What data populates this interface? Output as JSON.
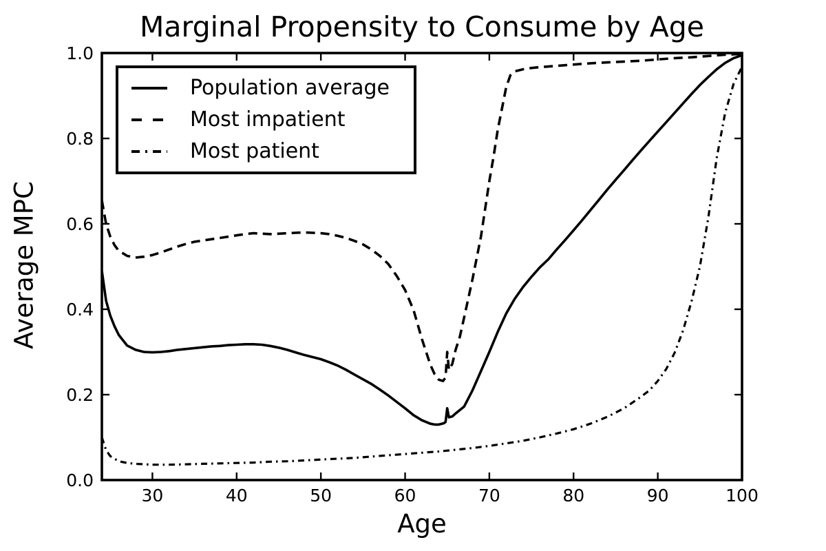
{
  "chart_data": {
    "type": "line",
    "title": "Marginal Propensity to Consume by Age",
    "xlabel": "Age",
    "ylabel": "Average MPC",
    "xlim": [
      24,
      100
    ],
    "ylim": [
      0.0,
      1.0
    ],
    "grid": false,
    "legend_position": "upper left",
    "line_color": "#000000",
    "background_color": "#ffffff",
    "xticks": [
      {
        "label": "30",
        "value": 30
      },
      {
        "label": "40",
        "value": 40
      },
      {
        "label": "50",
        "value": 50
      },
      {
        "label": "60",
        "value": 60
      },
      {
        "label": "70",
        "value": 70
      },
      {
        "label": "80",
        "value": 80
      },
      {
        "label": "90",
        "value": 90
      },
      {
        "label": "100",
        "value": 100
      }
    ],
    "yticks": [
      {
        "label": "0.0",
        "value": 0.0
      },
      {
        "label": "0.2",
        "value": 0.2
      },
      {
        "label": "0.4",
        "value": 0.4
      },
      {
        "label": "0.6",
        "value": 0.6
      },
      {
        "label": "0.8",
        "value": 0.8
      },
      {
        "label": "1.0",
        "value": 1.0
      }
    ],
    "series": [
      {
        "name": "Population average",
        "style": "solid",
        "points": [
          [
            24,
            0.49
          ],
          [
            24.5,
            0.42
          ],
          [
            25,
            0.385
          ],
          [
            25.5,
            0.36
          ],
          [
            26,
            0.34
          ],
          [
            27,
            0.315
          ],
          [
            28,
            0.305
          ],
          [
            29,
            0.3
          ],
          [
            30,
            0.299
          ],
          [
            31,
            0.3
          ],
          [
            32,
            0.302
          ],
          [
            33,
            0.305
          ],
          [
            34,
            0.307
          ],
          [
            35,
            0.309
          ],
          [
            36,
            0.311
          ],
          [
            37,
            0.313
          ],
          [
            38,
            0.314
          ],
          [
            39,
            0.316
          ],
          [
            40,
            0.317
          ],
          [
            41,
            0.318
          ],
          [
            42,
            0.318
          ],
          [
            43,
            0.317
          ],
          [
            44,
            0.314
          ],
          [
            45,
            0.31
          ],
          [
            46,
            0.305
          ],
          [
            47,
            0.299
          ],
          [
            48,
            0.293
          ],
          [
            49,
            0.288
          ],
          [
            50,
            0.283
          ],
          [
            51,
            0.276
          ],
          [
            52,
            0.268
          ],
          [
            53,
            0.258
          ],
          [
            54,
            0.247
          ],
          [
            55,
            0.236
          ],
          [
            56,
            0.225
          ],
          [
            57,
            0.212
          ],
          [
            58,
            0.198
          ],
          [
            59,
            0.183
          ],
          [
            60,
            0.168
          ],
          [
            61,
            0.152
          ],
          [
            62,
            0.14
          ],
          [
            63,
            0.132
          ],
          [
            63.5,
            0.13
          ],
          [
            64,
            0.13
          ],
          [
            64.6,
            0.133
          ],
          [
            64.8,
            0.136
          ],
          [
            65,
            0.168
          ],
          [
            65.2,
            0.147
          ],
          [
            65.6,
            0.149
          ],
          [
            66,
            0.156
          ],
          [
            67,
            0.172
          ],
          [
            68,
            0.21
          ],
          [
            69,
            0.255
          ],
          [
            70,
            0.3
          ],
          [
            71,
            0.347
          ],
          [
            72,
            0.39
          ],
          [
            73,
            0.424
          ],
          [
            74,
            0.452
          ],
          [
            75,
            0.476
          ],
          [
            76,
            0.498
          ],
          [
            77,
            0.517
          ],
          [
            78,
            0.54
          ],
          [
            79,
            0.562
          ],
          [
            80,
            0.585
          ],
          [
            81,
            0.608
          ],
          [
            82,
            0.632
          ],
          [
            83,
            0.656
          ],
          [
            84,
            0.68
          ],
          [
            85,
            0.703
          ],
          [
            86,
            0.726
          ],
          [
            87,
            0.749
          ],
          [
            88,
            0.772
          ],
          [
            89,
            0.794
          ],
          [
            90,
            0.816
          ],
          [
            91,
            0.838
          ],
          [
            92,
            0.86
          ],
          [
            93,
            0.882
          ],
          [
            94,
            0.904
          ],
          [
            95,
            0.925
          ],
          [
            96,
            0.944
          ],
          [
            97,
            0.962
          ],
          [
            98,
            0.977
          ],
          [
            99,
            0.988
          ],
          [
            100,
            0.995
          ]
        ]
      },
      {
        "name": "Most impatient",
        "style": "dashed",
        "points": [
          [
            24,
            0.655
          ],
          [
            24.5,
            0.6
          ],
          [
            25,
            0.57
          ],
          [
            25.5,
            0.55
          ],
          [
            26,
            0.537
          ],
          [
            27,
            0.525
          ],
          [
            28,
            0.521
          ],
          [
            29,
            0.523
          ],
          [
            30,
            0.527
          ],
          [
            31,
            0.533
          ],
          [
            32,
            0.54
          ],
          [
            33,
            0.547
          ],
          [
            34,
            0.553
          ],
          [
            35,
            0.558
          ],
          [
            36,
            0.561
          ],
          [
            37,
            0.564
          ],
          [
            38,
            0.567
          ],
          [
            39,
            0.57
          ],
          [
            40,
            0.573
          ],
          [
            41,
            0.576
          ],
          [
            42,
            0.578
          ],
          [
            43,
            0.577
          ],
          [
            44,
            0.576
          ],
          [
            45,
            0.577
          ],
          [
            46,
            0.578
          ],
          [
            47,
            0.579
          ],
          [
            48,
            0.58
          ],
          [
            49,
            0.579
          ],
          [
            50,
            0.578
          ],
          [
            51,
            0.576
          ],
          [
            52,
            0.572
          ],
          [
            53,
            0.567
          ],
          [
            54,
            0.56
          ],
          [
            55,
            0.552
          ],
          [
            56,
            0.54
          ],
          [
            57,
            0.525
          ],
          [
            58,
            0.506
          ],
          [
            59,
            0.478
          ],
          [
            60,
            0.445
          ],
          [
            61,
            0.398
          ],
          [
            62,
            0.33
          ],
          [
            63,
            0.27
          ],
          [
            63.5,
            0.248
          ],
          [
            64,
            0.235
          ],
          [
            64.5,
            0.232
          ],
          [
            64.8,
            0.24
          ],
          [
            65,
            0.3
          ],
          [
            65.2,
            0.258
          ],
          [
            65.6,
            0.272
          ],
          [
            66,
            0.305
          ],
          [
            66.5,
            0.336
          ],
          [
            67,
            0.38
          ],
          [
            68,
            0.47
          ],
          [
            69,
            0.57
          ],
          [
            70,
            0.7
          ],
          [
            70.5,
            0.757
          ],
          [
            71,
            0.82
          ],
          [
            72,
            0.92
          ],
          [
            72.5,
            0.948
          ],
          [
            73,
            0.957
          ],
          [
            74,
            0.962
          ],
          [
            75,
            0.965
          ],
          [
            76,
            0.967
          ],
          [
            78,
            0.97
          ],
          [
            80,
            0.973
          ],
          [
            82,
            0.976
          ],
          [
            84,
            0.978
          ],
          [
            86,
            0.98
          ],
          [
            88,
            0.982
          ],
          [
            90,
            0.985
          ],
          [
            92,
            0.988
          ],
          [
            94,
            0.99
          ],
          [
            96,
            0.993
          ],
          [
            98,
            0.996
          ],
          [
            100,
            0.998
          ]
        ]
      },
      {
        "name": "Most patient",
        "style": "dashdot",
        "points": [
          [
            24,
            0.1
          ],
          [
            24.5,
            0.07
          ],
          [
            25,
            0.056
          ],
          [
            26,
            0.044
          ],
          [
            27,
            0.04
          ],
          [
            28,
            0.038
          ],
          [
            30,
            0.036
          ],
          [
            32,
            0.036
          ],
          [
            34,
            0.037
          ],
          [
            36,
            0.038
          ],
          [
            38,
            0.039
          ],
          [
            40,
            0.04
          ],
          [
            42,
            0.041
          ],
          [
            44,
            0.043
          ],
          [
            46,
            0.044
          ],
          [
            48,
            0.046
          ],
          [
            50,
            0.048
          ],
          [
            52,
            0.05
          ],
          [
            54,
            0.052
          ],
          [
            56,
            0.055
          ],
          [
            58,
            0.058
          ],
          [
            60,
            0.061
          ],
          [
            62,
            0.064
          ],
          [
            64,
            0.067
          ],
          [
            66,
            0.071
          ],
          [
            68,
            0.075
          ],
          [
            70,
            0.08
          ],
          [
            72,
            0.086
          ],
          [
            74,
            0.092
          ],
          [
            76,
            0.1
          ],
          [
            78,
            0.109
          ],
          [
            80,
            0.119
          ],
          [
            82,
            0.132
          ],
          [
            84,
            0.148
          ],
          [
            86,
            0.168
          ],
          [
            88,
            0.195
          ],
          [
            89,
            0.21
          ],
          [
            90,
            0.232
          ],
          [
            91,
            0.26
          ],
          [
            92,
            0.298
          ],
          [
            93,
            0.35
          ],
          [
            94,
            0.418
          ],
          [
            95,
            0.5
          ],
          [
            96,
            0.615
          ],
          [
            97,
            0.755
          ],
          [
            98,
            0.86
          ],
          [
            99,
            0.928
          ],
          [
            100,
            0.968
          ]
        ]
      }
    ]
  }
}
